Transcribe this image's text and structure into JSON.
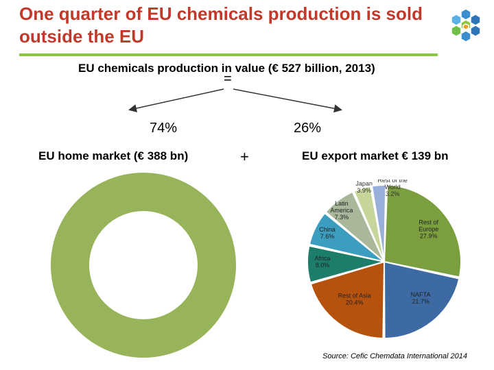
{
  "slide": {
    "title": "One quarter of EU chemicals production is sold outside the EU",
    "subtitle": "EU chemicals production  in value (€ 527 billion, 2013)",
    "equals_sign": "=",
    "plus_sign": "+",
    "source": "Source: Cefic Chemdata International 2014"
  },
  "colors": {
    "title": "#c0392b",
    "rule": "#8cc63f",
    "donut": "#97b45a"
  },
  "chart_data": [
    {
      "type": "pie",
      "label": "74%",
      "caption": "EU home market (€ 388 bn)",
      "values": [
        74
      ],
      "color": "#97b45a"
    },
    {
      "type": "pie",
      "label": "26%",
      "caption": "EU export market € 139 bn",
      "series": [
        {
          "name": "Rest of Europe",
          "value": 27.9,
          "label": "Rest of\nEurope\n27.9%",
          "color": "#7b9e3e"
        },
        {
          "name": "NAFTA",
          "value": 21.7,
          "label": "NAFTA\n21.7%",
          "color": "#3d6aa3"
        },
        {
          "name": "Rest of Asia",
          "value": 20.4,
          "label": "Rest of Asia\n20.4%",
          "color": "#b5530e"
        },
        {
          "name": "Africa",
          "value": 8.0,
          "label": "Africa\n8.0%",
          "color": "#1b7d6a"
        },
        {
          "name": "China",
          "value": 7.6,
          "label": "China\n7.6%",
          "color": "#3c9dbf"
        },
        {
          "name": "Latin America",
          "value": 7.3,
          "label": "Latin\nAmerica\n7.3%",
          "color": "#a9b79a"
        },
        {
          "name": "Japan",
          "value": 3.9,
          "label": "Japan\n3.9%",
          "color": "#c6d69b"
        },
        {
          "name": "Rest of the World",
          "value": 3.2,
          "label": "Rest of the\nWorld\n3.2%",
          "color": "#98b0d9"
        }
      ]
    }
  ]
}
